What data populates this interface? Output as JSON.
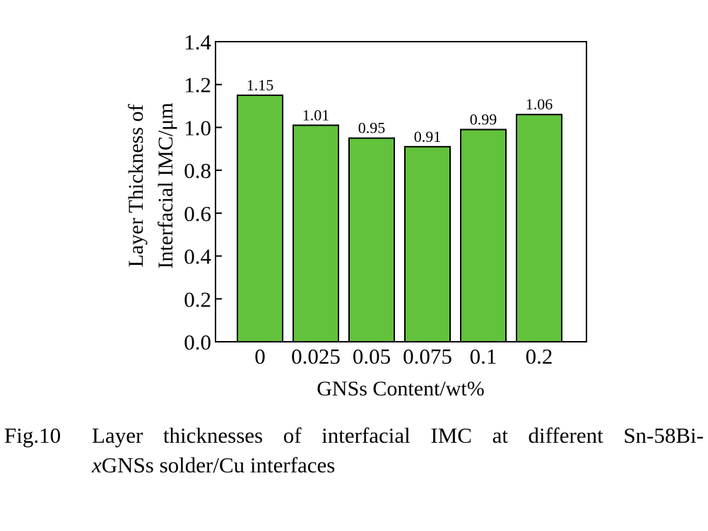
{
  "chart_data": {
    "type": "bar",
    "categories": [
      "0",
      "0.025",
      "0.05",
      "0.075",
      "0.1",
      "0.2"
    ],
    "values": [
      1.15,
      1.01,
      0.95,
      0.91,
      0.99,
      1.06
    ],
    "data_labels": [
      "1.15",
      "1.01",
      "0.95",
      "0.91",
      "0.99",
      "1.06"
    ],
    "xlabel": "GNSs Content/wt%",
    "ylabel_line1": "Layer Thickness of",
    "ylabel_line2": "Interfacial IMC/μm",
    "ylim": [
      0,
      1.4
    ],
    "yticks": [
      "0.0",
      "0.2",
      "0.4",
      "0.6",
      "0.8",
      "1.0",
      "1.2",
      "1.4"
    ],
    "grid": false,
    "bar_color": "#62c23c",
    "edge_color": "#000000"
  },
  "caption": {
    "label": "Fig.10",
    "line1": "Layer thicknesses of interfacial IMC at different Sn-58Bi-",
    "line2_italic": "x",
    "line2_rest": "GNSs solder/Cu interfaces"
  }
}
